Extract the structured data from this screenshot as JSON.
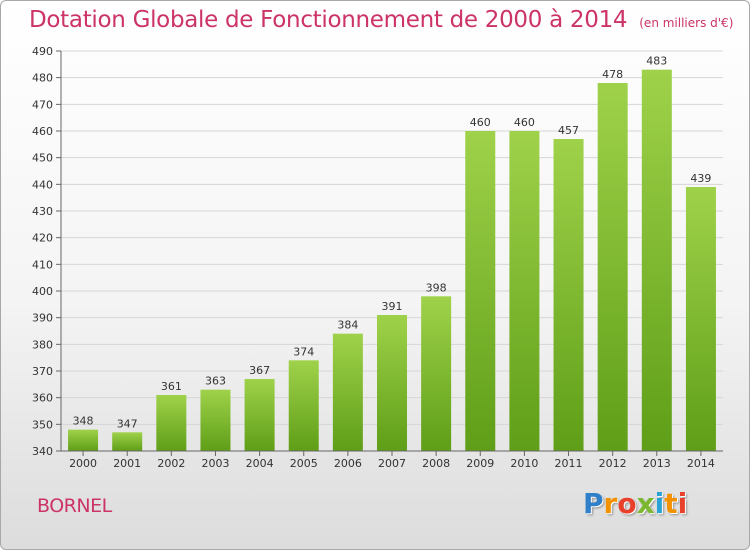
{
  "chart_data": {
    "type": "bar",
    "title": "Dotation Globale de Fonctionnement de 2000 à 2014",
    "subtitle": "(en milliers d'€)",
    "categories": [
      "2000",
      "2001",
      "2002",
      "2003",
      "2004",
      "2005",
      "2006",
      "2007",
      "2008",
      "2009",
      "2010",
      "2011",
      "2012",
      "2013",
      "2014"
    ],
    "values": [
      348,
      347,
      361,
      363,
      367,
      374,
      384,
      391,
      398,
      460,
      460,
      457,
      478,
      483,
      439
    ],
    "ylim": [
      340,
      490
    ],
    "yticks": [
      340,
      350,
      360,
      370,
      380,
      390,
      400,
      410,
      420,
      430,
      440,
      450,
      460,
      470,
      480,
      490
    ],
    "xlabel": "",
    "ylabel": "",
    "grid": true,
    "bar_color": "#77b82a"
  },
  "commune": "BORNEL",
  "brand": {
    "letters": [
      "P",
      "r",
      "o",
      "x",
      "i",
      "t",
      "i"
    ]
  }
}
